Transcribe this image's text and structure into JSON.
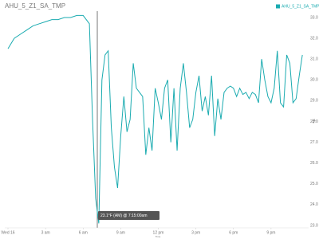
{
  "chart_data": {
    "type": "line",
    "title": "AHU_5_Z1_SA_TMP",
    "y_axis_label": "°F",
    "x_axis_label": "Time",
    "tooltip": "23.1°F (AM) @ 7:15:00am",
    "x": [
      0,
      0.5,
      1,
      1.5,
      2,
      2.5,
      3,
      3.5,
      4,
      4.5,
      5,
      5.5,
      6,
      6.5,
      6.75,
      7,
      7.25,
      7.5,
      7.75,
      8,
      8.25,
      8.5,
      8.75,
      9,
      9.25,
      9.5,
      9.75,
      10,
      10.25,
      10.5,
      10.75,
      11,
      11.25,
      11.5,
      11.75,
      12,
      12.25,
      12.5,
      12.75,
      13,
      13.25,
      13.5,
      13.75,
      14,
      14.25,
      14.5,
      14.75,
      15,
      15.25,
      15.5,
      15.75,
      16,
      16.25,
      16.5,
      16.75,
      17,
      17.25,
      17.5,
      17.75,
      18,
      18.25,
      18.5,
      18.75,
      19,
      19.25,
      19.5,
      19.75,
      20,
      20.25,
      20.5,
      20.75,
      21,
      21.25,
      21.5,
      21.75,
      22,
      22.25,
      22.5,
      22.75,
      23,
      23.25,
      23.5
    ],
    "series": [
      {
        "name": "AHU_5_Z1_SA_TMP",
        "color": "#1aabb0",
        "values": [
          31.5,
          32.0,
          32.2,
          32.4,
          32.6,
          32.7,
          32.8,
          32.9,
          32.9,
          33.0,
          33.0,
          33.1,
          33.1,
          32.7,
          28.1,
          24.3,
          23.1,
          30.0,
          31.2,
          31.4,
          27.7,
          25.8,
          24.8,
          27.3,
          29.2,
          27.5,
          28.1,
          30.8,
          29.6,
          29.4,
          29.2,
          26.4,
          27.7,
          26.6,
          29.6,
          28.9,
          28.1,
          29.6,
          30.0,
          27.0,
          29.6,
          26.6,
          29.6,
          30.8,
          29.4,
          27.7,
          28.1,
          29.4,
          30.2,
          28.5,
          29.2,
          28.3,
          30.2,
          27.3,
          29.1,
          28.1,
          29.4,
          29.6,
          29.7,
          29.6,
          29.2,
          29.6,
          29.3,
          29.4,
          29.1,
          29.4,
          29.3,
          28.9,
          31.0,
          30.0,
          29.2,
          28.9,
          29.6,
          31.4,
          28.9,
          28.7,
          31.2,
          30.8,
          28.9,
          29.1,
          30.2,
          31.2
        ]
      }
    ],
    "xlim": [
      0,
      24
    ],
    "xticks": [
      {
        "value": 0,
        "label": "Wed 16"
      },
      {
        "value": 3,
        "label": "3 am"
      },
      {
        "value": 6,
        "label": "6 am"
      },
      {
        "value": 9,
        "label": "9 am"
      },
      {
        "value": 12,
        "label": "12 pm"
      },
      {
        "value": 15,
        "label": "3 pm"
      },
      {
        "value": 18,
        "label": "6 pm"
      },
      {
        "value": 21,
        "label": "9 pm"
      }
    ],
    "ylim": [
      23,
      33
    ],
    "yticks": [
      {
        "value": 23,
        "label": "23.0"
      },
      {
        "value": 24,
        "label": "24.0"
      },
      {
        "value": 25,
        "label": "25.0"
      },
      {
        "value": 26,
        "label": "26.0"
      },
      {
        "value": 27,
        "label": "27.0"
      },
      {
        "value": 28,
        "label": "28.0"
      },
      {
        "value": 29,
        "label": "29.0"
      },
      {
        "value": 30,
        "label": "30.0"
      },
      {
        "value": 31,
        "label": "31.0"
      },
      {
        "value": 32,
        "label": "32.0"
      },
      {
        "value": 33,
        "label": "33.0"
      }
    ],
    "legend": "top-right",
    "grid": false
  }
}
